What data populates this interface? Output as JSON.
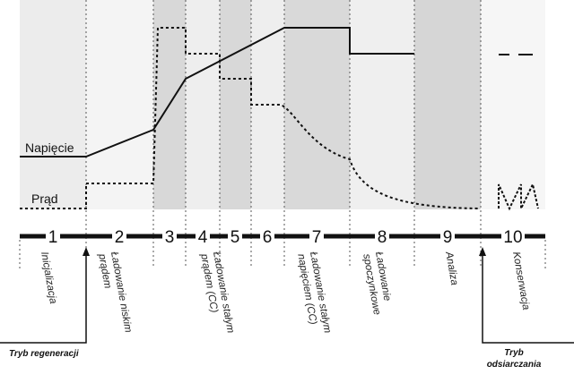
{
  "labels": {
    "voltage": "Napięcie",
    "current": "Prąd"
  },
  "phases": [
    {
      "number": "1",
      "lines": [
        "Inicjalizacja"
      ]
    },
    {
      "number": "2",
      "lines": [
        "Ładowanie niskim",
        "prądem"
      ]
    },
    {
      "number": "3",
      "lines": []
    },
    {
      "number": "4",
      "lines": [
        "Ładowanie stałym",
        "prądem (CC)"
      ]
    },
    {
      "number": "5",
      "lines": []
    },
    {
      "number": "6",
      "lines": []
    },
    {
      "number": "7",
      "lines": [
        "Ładowanie stałym",
        "napięciem (CC)"
      ]
    },
    {
      "number": "8",
      "lines": [
        "Ładowanie",
        "spoczynkowe"
      ]
    },
    {
      "number": "9",
      "lines": [
        "Analiza"
      ]
    },
    {
      "number": "10",
      "lines": [
        "Konserwacja"
      ]
    }
  ],
  "modes": {
    "regeneration": "Tryb regeneracji",
    "desulfation_line1": "Tryb",
    "desulfation_line2": "odsiarczania"
  },
  "colors": {
    "shade_light": "#f1f1f1",
    "shade_mid": "#e6e6e6",
    "shade_dark": "#d6d6d6",
    "line": "#111111"
  }
}
